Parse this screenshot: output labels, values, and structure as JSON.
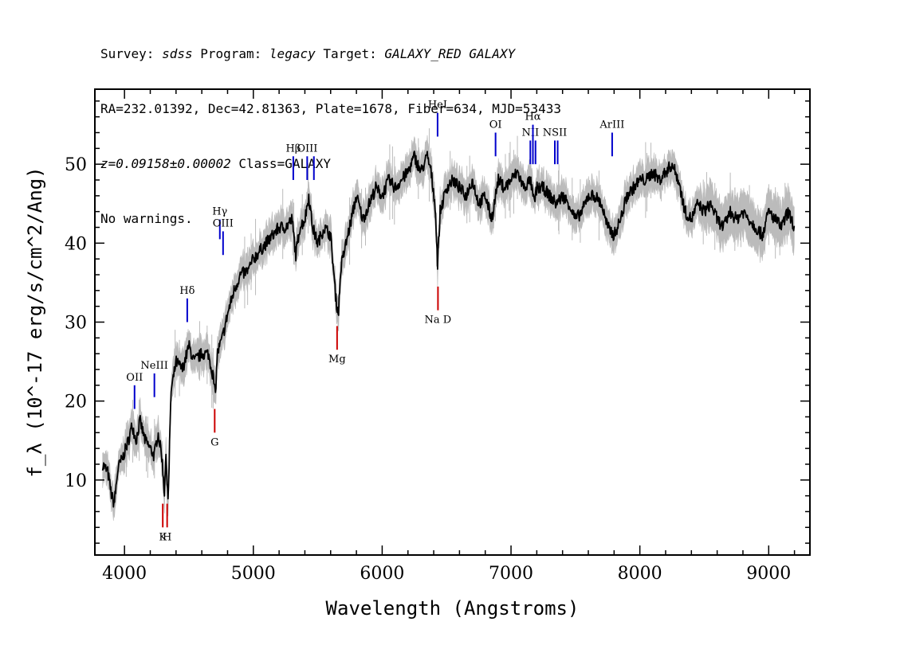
{
  "header": {
    "line1": [
      {
        "t": "Survey: ",
        "i": false
      },
      {
        "t": "sdss",
        "i": true
      },
      {
        "t": " Program: ",
        "i": false
      },
      {
        "t": "legacy",
        "i": true
      },
      {
        "t": " Target: ",
        "i": false
      },
      {
        "t": "GALAXY_RED GALAXY",
        "i": true
      }
    ],
    "line2": [
      {
        "t": "RA=232.01392, Dec=42.81363, Plate=1678, Fiber=634, MJD=53433",
        "i": false
      }
    ],
    "line3": [
      {
        "t": "z=0.09158±0.00002",
        "i": true
      },
      {
        "t": " Class=GALAXY",
        "i": false
      }
    ],
    "line4": [
      {
        "t": "No warnings.",
        "i": false
      }
    ]
  },
  "chart_data": {
    "type": "line",
    "xlabel": "Wavelength (Angstroms)",
    "ylabel": "f_λ (10^-17 erg/s/cm^2/Ang)",
    "xlim": [
      3770,
      9320
    ],
    "ylim": [
      0.5,
      59.5
    ],
    "xticks": [
      4000,
      5000,
      6000,
      7000,
      8000,
      9000
    ],
    "yticks": [
      10,
      20,
      30,
      40,
      50
    ],
    "colors": {
      "flux": "#000000",
      "noise": "#bbbbbb",
      "emission": "#0000cc",
      "absorption": "#cc0000"
    },
    "spectrum_keypoints": [
      [
        3830,
        12
      ],
      [
        3870,
        11
      ],
      [
        3900,
        8
      ],
      [
        3920,
        7
      ],
      [
        3950,
        11.5
      ],
      [
        3990,
        13
      ],
      [
        4030,
        15
      ],
      [
        4060,
        17
      ],
      [
        4090,
        15
      ],
      [
        4120,
        17.5
      ],
      [
        4160,
        15
      ],
      [
        4200,
        14
      ],
      [
        4230,
        13
      ],
      [
        4260,
        16
      ],
      [
        4290,
        13
      ],
      [
        4310,
        8.5
      ],
      [
        4320,
        13
      ],
      [
        4340,
        7.5
      ],
      [
        4360,
        21
      ],
      [
        4400,
        25
      ],
      [
        4450,
        24
      ],
      [
        4500,
        27
      ],
      [
        4540,
        25
      ],
      [
        4600,
        26
      ],
      [
        4650,
        26
      ],
      [
        4690,
        23
      ],
      [
        4705,
        20.5
      ],
      [
        4720,
        26
      ],
      [
        4760,
        28
      ],
      [
        4800,
        31
      ],
      [
        4850,
        34
      ],
      [
        4900,
        36
      ],
      [
        4960,
        36.5
      ],
      [
        5000,
        38
      ],
      [
        5050,
        39
      ],
      [
        5100,
        40
      ],
      [
        5150,
        41
      ],
      [
        5200,
        42
      ],
      [
        5250,
        42
      ],
      [
        5300,
        43
      ],
      [
        5330,
        38.5
      ],
      [
        5360,
        42
      ],
      [
        5400,
        43
      ],
      [
        5430,
        46
      ],
      [
        5460,
        42
      ],
      [
        5500,
        40
      ],
      [
        5550,
        42
      ],
      [
        5600,
        41
      ],
      [
        5640,
        33
      ],
      [
        5660,
        31
      ],
      [
        5680,
        37
      ],
      [
        5720,
        40
      ],
      [
        5760,
        43
      ],
      [
        5800,
        46
      ],
      [
        5850,
        43
      ],
      [
        5900,
        45
      ],
      [
        5950,
        47
      ],
      [
        6000,
        46
      ],
      [
        6050,
        48
      ],
      [
        6100,
        47
      ],
      [
        6150,
        48
      ],
      [
        6200,
        49
      ],
      [
        6250,
        51
      ],
      [
        6300,
        49
      ],
      [
        6350,
        51
      ],
      [
        6380,
        49
      ],
      [
        6410,
        45
      ],
      [
        6430,
        37.5
      ],
      [
        6450,
        44
      ],
      [
        6500,
        47
      ],
      [
        6550,
        48
      ],
      [
        6600,
        47
      ],
      [
        6650,
        46
      ],
      [
        6700,
        48
      ],
      [
        6750,
        45
      ],
      [
        6800,
        46
      ],
      [
        6850,
        43
      ],
      [
        6900,
        48
      ],
      [
        6950,
        47
      ],
      [
        7000,
        48
      ],
      [
        7050,
        49
      ],
      [
        7100,
        47
      ],
      [
        7150,
        48
      ],
      [
        7180,
        45
      ],
      [
        7200,
        47
      ],
      [
        7250,
        47
      ],
      [
        7300,
        46
      ],
      [
        7350,
        45
      ],
      [
        7400,
        46
      ],
      [
        7450,
        45
      ],
      [
        7500,
        43
      ],
      [
        7550,
        44
      ],
      [
        7600,
        46
      ],
      [
        7650,
        46
      ],
      [
        7700,
        45
      ],
      [
        7750,
        42
      ],
      [
        7800,
        41
      ],
      [
        7850,
        43
      ],
      [
        7900,
        46
      ],
      [
        7950,
        47
      ],
      [
        8000,
        48
      ],
      [
        8050,
        48
      ],
      [
        8100,
        49
      ],
      [
        8150,
        48
      ],
      [
        8200,
        49
      ],
      [
        8250,
        50
      ],
      [
        8300,
        48
      ],
      [
        8350,
        44
      ],
      [
        8400,
        43
      ],
      [
        8450,
        45
      ],
      [
        8500,
        44
      ],
      [
        8550,
        45
      ],
      [
        8600,
        43
      ],
      [
        8650,
        42
      ],
      [
        8700,
        44
      ],
      [
        8750,
        43
      ],
      [
        8800,
        44
      ],
      [
        8850,
        43
      ],
      [
        8900,
        42
      ],
      [
        8950,
        41
      ],
      [
        9000,
        44
      ],
      [
        9050,
        43
      ],
      [
        9100,
        42
      ],
      [
        9150,
        44
      ],
      [
        9200,
        42
      ]
    ],
    "emission_lines": [
      {
        "label": "OII",
        "x": 4078,
        "y0": 19,
        "y1": 22
      },
      {
        "label": "NeIII",
        "x": 4232,
        "y0": 20.5,
        "y1": 23.5
      },
      {
        "label": "Hδ",
        "x": 4487,
        "y0": 30,
        "y1": 33
      },
      {
        "label": "Hγ",
        "x": 4740,
        "y0": 40.5,
        "y1": 43
      },
      {
        "label": "OIII",
        "x": 4765,
        "y0": 38.5,
        "y1": 41.5
      },
      {
        "label": "Hβ",
        "x": 5310,
        "y0": 48,
        "y1": 51
      },
      {
        "label": "OIII",
        "x": 5418,
        "y0": 48,
        "y1": 51
      },
      {
        "label": "",
        "x": 5470,
        "y0": 48,
        "y1": 51
      },
      {
        "label": "HeI",
        "x": 6430,
        "y0": 53.5,
        "y1": 56.5
      },
      {
        "label": "OI",
        "x": 6880,
        "y0": 51,
        "y1": 54
      },
      {
        "label": "NII",
        "x": 7150,
        "y0": 50,
        "y1": 53
      },
      {
        "label": "Hα",
        "x": 7170,
        "y0": 50,
        "y1": 55
      },
      {
        "label": "",
        "x": 7190,
        "y0": 50,
        "y1": 53
      },
      {
        "label": "NSII",
        "x": 7340,
        "y0": 50,
        "y1": 53
      },
      {
        "label": "",
        "x": 7362,
        "y0": 50,
        "y1": 53
      },
      {
        "label": "ArIII",
        "x": 7785,
        "y0": 51,
        "y1": 54
      }
    ],
    "absorption_lines": [
      {
        "label": "K",
        "x": 4297,
        "y0": 4,
        "y1": 7
      },
      {
        "label": "H",
        "x": 4331,
        "y0": 4,
        "y1": 7
      },
      {
        "label": "G",
        "x": 4700,
        "y0": 16,
        "y1": 19
      },
      {
        "label": "Mg",
        "x": 5650,
        "y0": 26.5,
        "y1": 29.5
      },
      {
        "label": "Na D",
        "x": 6433,
        "y0": 31.5,
        "y1": 34.5
      }
    ]
  }
}
